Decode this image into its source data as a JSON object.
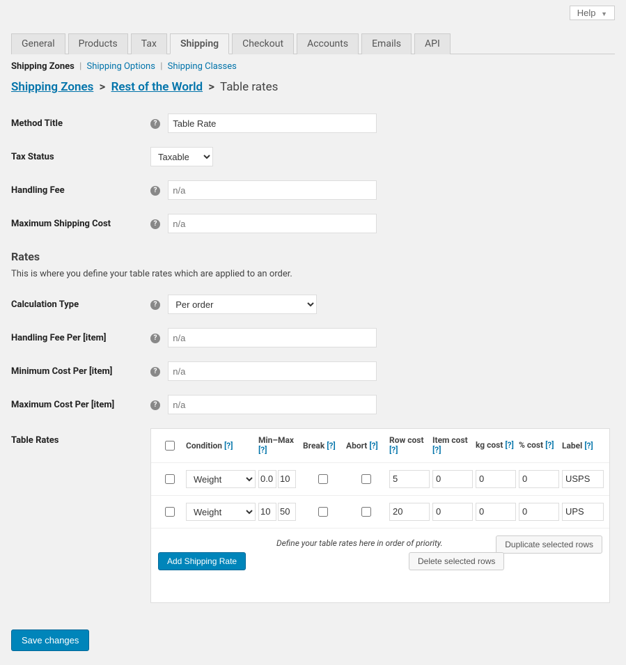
{
  "help_label": "Help",
  "tabs": [
    "General",
    "Products",
    "Tax",
    "Shipping",
    "Checkout",
    "Accounts",
    "Emails",
    "API"
  ],
  "active_tab_index": 3,
  "subnav": {
    "current": "Shipping Zones",
    "links": [
      "Shipping Options",
      "Shipping Classes"
    ]
  },
  "breadcrumbs": {
    "a": "Shipping Zones",
    "b": "Rest of the World",
    "tail": "Table rates"
  },
  "fields": {
    "method_title_label": "Method Title",
    "method_title_value": "Table Rate",
    "tax_status_label": "Tax Status",
    "tax_status_value": "Taxable",
    "handling_fee_label": "Handling Fee",
    "handling_fee_placeholder": "n/a",
    "max_cost_label": "Maximum Shipping Cost",
    "max_cost_placeholder": "n/a",
    "calc_type_label": "Calculation Type",
    "calc_type_value": "Per order",
    "handling_per_item_label": "Handling Fee Per [item]",
    "handling_per_item_placeholder": "n/a",
    "min_cost_item_label": "Minimum Cost Per [item]",
    "min_cost_item_placeholder": "n/a",
    "max_cost_item_label": "Maximum Cost Per [item]",
    "max_cost_item_placeholder": "n/a",
    "table_rates_label": "Table Rates"
  },
  "rates_section": {
    "heading": "Rates",
    "desc": "This is where you define your table rates which are applied to an order."
  },
  "rates_table": {
    "columns": {
      "condition": "Condition",
      "minmax": "Min–Max",
      "break": "Break",
      "abort": "Abort",
      "row_cost": "Row cost",
      "item_cost": "Item cost",
      "kg_cost": "kg cost",
      "pct_cost": "% cost",
      "label": "Label"
    },
    "rows": [
      {
        "condition": "Weight",
        "min": "0.0",
        "max": "10",
        "row_cost": "5",
        "item_cost": "0",
        "kg_cost": "0",
        "pct_cost": "0",
        "label": "USPS"
      },
      {
        "condition": "Weight",
        "min": "10",
        "max": "50",
        "row_cost": "20",
        "item_cost": "0",
        "kg_cost": "0",
        "pct_cost": "0",
        "label": "UPS"
      }
    ]
  },
  "buttons": {
    "add_rate": "Add Shipping Rate",
    "footer_text": "Define your table rates here in order of priority.",
    "delete_rows": "Delete selected rows",
    "duplicate_rows": "Duplicate selected rows",
    "save": "Save changes"
  }
}
